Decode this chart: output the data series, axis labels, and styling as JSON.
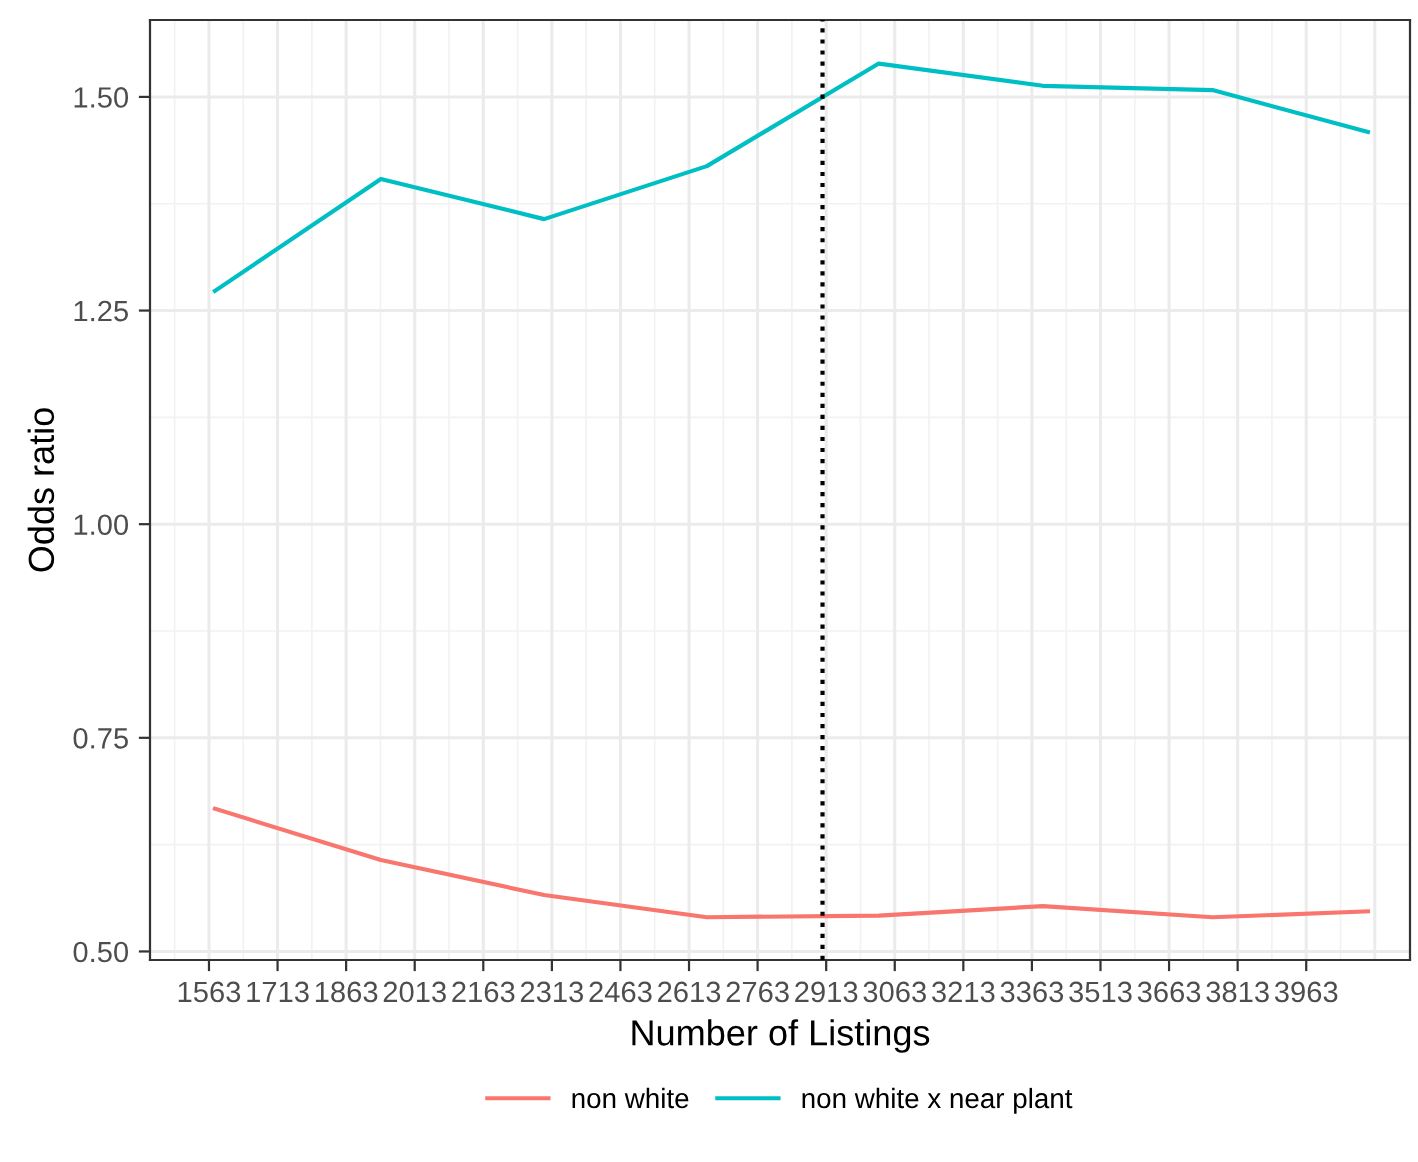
{
  "chart_data": {
    "type": "line",
    "xlabel": "Number of Listings",
    "ylabel": "Odds ratio",
    "x": [
      1576,
      1939,
      2296,
      2652,
      3028,
      3387,
      3758,
      4098
    ],
    "series": [
      {
        "name": "non white",
        "color": "#f8766d",
        "values": [
          0.667,
          0.607,
          0.566,
          0.54,
          0.542,
          0.553,
          0.54,
          0.547
        ]
      },
      {
        "name": "non white x near plant",
        "color": "#00bfc4",
        "values": [
          1.273,
          1.404,
          1.357,
          1.419,
          1.539,
          1.513,
          1.508,
          1.459
        ]
      }
    ],
    "xlim": [
      1434,
      4190
    ],
    "xticks": [
      1563,
      1713,
      1863,
      2013,
      2163,
      2313,
      2463,
      2613,
      2763,
      2913,
      3063,
      3213,
      3363,
      3513,
      3663,
      3813,
      3963
    ],
    "ylim": [
      0.49,
      1.59
    ],
    "yticks": [
      {
        "value": 0.5,
        "label": "0.50"
      },
      {
        "value": 0.75,
        "label": "0.75"
      },
      {
        "value": 1.0,
        "label": "1.00"
      },
      {
        "value": 1.25,
        "label": "1.25"
      },
      {
        "value": 1.5,
        "label": "1.50"
      }
    ],
    "ref_lines": [
      {
        "axis": "x",
        "value": 2905,
        "color": "#000000",
        "line_style": "dotted"
      }
    ],
    "grid": true,
    "legend": "bottom",
    "marker": "none",
    "line_style": "solid"
  }
}
